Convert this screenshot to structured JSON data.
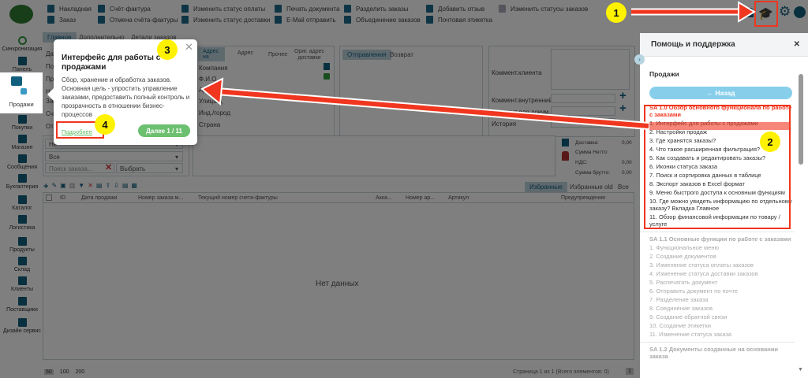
{
  "toolbar": {
    "col1": [
      "Накладная",
      "Заказ"
    ],
    "col2": [
      "Счёт-фактура",
      "Отмена счёта-фактуры"
    ],
    "col3": [
      "Изменить статус оплаты",
      "Изменить статус доставки"
    ],
    "col4": [
      "Печать документа",
      "E-Mail отправить"
    ],
    "col5": [
      "Разделить заказы",
      "Объединение заказов"
    ],
    "col6": [
      "Добавить отзыв",
      "Почтовая этикетка"
    ],
    "col7": [
      "Изменить статусы заказов"
    ],
    "icons": [
      "bell-icon",
      "graduation-cap-icon",
      "gear-icon",
      "user-icon"
    ]
  },
  "sidebar": {
    "items": [
      {
        "label": "Синхронизация"
      },
      {
        "label": "Панель"
      },
      {
        "label": "Продажи"
      },
      {
        "label": "Покупки"
      },
      {
        "label": "Магазин"
      },
      {
        "label": "Сообщения"
      },
      {
        "label": "Бухгалтерия"
      },
      {
        "label": "Каталог"
      },
      {
        "label": "Логистика"
      },
      {
        "label": "Продукты"
      },
      {
        "label": "Склад"
      },
      {
        "label": "Клиенты"
      },
      {
        "label": "Поставщики"
      },
      {
        "label": "Дизайн сервис"
      }
    ]
  },
  "tabs": [
    "Главное",
    "Дополнительно",
    "Детали заказов"
  ],
  "form": {
    "left_labels": [
      "Дат",
      "Пон",
      "Про",
      "Не",
      "Зак",
      "Сче",
      "Отм"
    ],
    "address_tabs": [
      "Адрес на",
      "Адрес",
      "Прочее",
      "Ориг. адрес доставки"
    ],
    "address_labels": [
      "Компания",
      "Ф.И.О",
      "Адр",
      "Улица/д",
      "Инд./город",
      "Страна"
    ],
    "ship_tabs": [
      "Отправления",
      "Возврат"
    ],
    "comment_labels": [
      "Коммент.клиента",
      "Коммент.внутренний",
      "Коммент.для докум.",
      "История"
    ],
    "filter1": "Не",
    "filter2": "Все",
    "search_placeholder": "Поиск заказа...",
    "select": "Выбрать",
    "totals": [
      {
        "label": "Доставка:",
        "value": "0,00"
      },
      {
        "label": "Сумма Нетто:",
        "value": ""
      },
      {
        "label": "НДС:",
        "value": "0,00"
      },
      {
        "label": "Сумма брутто:",
        "value": "0,00"
      }
    ]
  },
  "grid": {
    "view_tabs": [
      "Избранные",
      "Избранные old",
      "Все"
    ],
    "columns": [
      "ID",
      "Дата продажи",
      "Номер заказа м...",
      "Текущий номер счета-фактуры",
      "Акка...",
      "Номер ар...",
      "Артикул",
      "Предупреждения"
    ],
    "empty": "Нет данных",
    "page_sizes": [
      "50",
      "100",
      "200"
    ],
    "pager": "Страница 1 из 1 (Всего элементов: 0)",
    "page": "1"
  },
  "popup": {
    "title": "Интерфейс для работы с продажами",
    "body": "Сбор, хранение и обработка заказов. Основная цель - упростить управление заказами, предоставить полный контроль и прозрачность в отношении бизнес-процессов",
    "more": "Подробнее",
    "next": "Далее 1 / 11"
  },
  "help": {
    "title": "Помощь и поддержка",
    "section": "Продажи",
    "back": "← Назад",
    "groups": [
      {
        "title": "SA 1.0 Обзор основного функционала по работе с заказами",
        "active": true,
        "items": [
          "1. Интерфейс для работы с продажами",
          "2. Настройки продаж",
          "3. Где хранятся заказы?",
          "4. Что такое расширенная фильтрация?",
          "5. Как создавать и редактировать заказы?",
          "6. Иконки статуса заказа",
          "7. Поиск и сортировка данных в таблице",
          "8. Экспорт заказов в Excel формат",
          "9. Меню быстрого доступа к основным функциям",
          "10. Где можно увидеть информацию по отдельному заказу? Вкладка Главное",
          "11. Обзор финансовой информации по товару / услуге"
        ]
      },
      {
        "title": "SA 1.1 Основные функции по работе с заказами",
        "active": false,
        "items": [
          "1. Функциональное меню",
          "2. Создание документов",
          "3. Изменение статуса оплаты заказов",
          "4. Изменение статуса доставки заказов",
          "5. Распечатать документ",
          "6. Отправить документ по почте",
          "7. Разделение заказа",
          "8. Соединение заказов",
          "9. Создание обратной связи",
          "10. Создание этикетки",
          "11. Изменение статуса заказа"
        ]
      },
      {
        "title": "SA 1.2 Документы созданные на основании заказа",
        "active": false,
        "items": []
      }
    ]
  },
  "annotations": [
    "1",
    "2",
    "3",
    "4"
  ],
  "colors": {
    "accent": "#13607e",
    "highlight": "#f0361e",
    "badge": "#fff200",
    "next_button": "#6cc070",
    "back_button": "#87ceeb"
  }
}
